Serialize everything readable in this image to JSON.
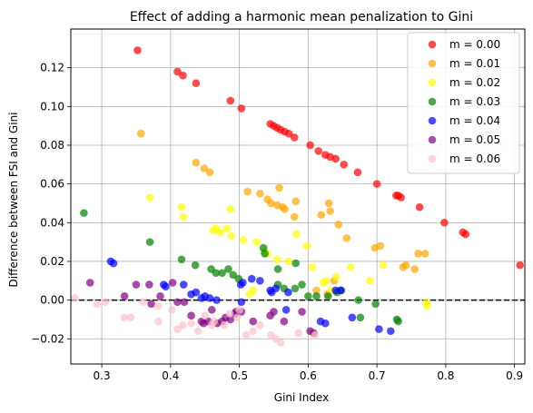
{
  "chart_data": {
    "type": "scatter",
    "title": "Effect of adding a harmonic mean penalization to Gini",
    "xlabel": "Gini Index",
    "ylabel": "Difference between FSI and Gini",
    "xlim": [
      0.255,
      0.915
    ],
    "ylim": [
      -0.033,
      0.14
    ],
    "xticks": [
      0.3,
      0.4,
      0.5,
      0.6,
      0.7,
      0.8,
      0.9
    ],
    "yticks": [
      -0.02,
      0.0,
      0.02,
      0.04,
      0.06,
      0.08,
      0.1,
      0.12
    ],
    "xtick_labels": [
      "0.3",
      "0.4",
      "0.5",
      "0.6",
      "0.7",
      "0.8",
      "0.9"
    ],
    "ytick_labels": [
      "−0.02",
      "0.00",
      "0.02",
      "0.04",
      "0.06",
      "0.08",
      "0.10",
      "0.12"
    ],
    "grid": true,
    "legend_position": "top-right",
    "reference_line": {
      "y": 0,
      "style": "dashed",
      "color": "#000000"
    },
    "series": [
      {
        "name": "m = 0.00",
        "color": "#ff0000",
        "points": [
          [
            0.352,
            0.129
          ],
          [
            0.41,
            0.118
          ],
          [
            0.418,
            0.116
          ],
          [
            0.437,
            0.112
          ],
          [
            0.487,
            0.103
          ],
          [
            0.503,
            0.099
          ],
          [
            0.545,
            0.091
          ],
          [
            0.55,
            0.09
          ],
          [
            0.555,
            0.089
          ],
          [
            0.56,
            0.088
          ],
          [
            0.566,
            0.087
          ],
          [
            0.572,
            0.086
          ],
          [
            0.58,
            0.084
          ],
          [
            0.603,
            0.08
          ],
          [
            0.615,
            0.077
          ],
          [
            0.625,
            0.075
          ],
          [
            0.632,
            0.074
          ],
          [
            0.64,
            0.073
          ],
          [
            0.652,
            0.07
          ],
          [
            0.672,
            0.066
          ],
          [
            0.7,
            0.06
          ],
          [
            0.728,
            0.054
          ],
          [
            0.731,
            0.054
          ],
          [
            0.735,
            0.053
          ],
          [
            0.762,
            0.048
          ],
          [
            0.798,
            0.04
          ],
          [
            0.825,
            0.035
          ],
          [
            0.829,
            0.034
          ],
          [
            0.908,
            0.018
          ]
        ]
      },
      {
        "name": "m = 0.01",
        "color": "#ffa500",
        "points": [
          [
            0.357,
            0.086
          ],
          [
            0.437,
            0.071
          ],
          [
            0.449,
            0.068
          ],
          [
            0.457,
            0.066
          ],
          [
            0.512,
            0.056
          ],
          [
            0.53,
            0.055
          ],
          [
            0.541,
            0.052
          ],
          [
            0.558,
            0.058
          ],
          [
            0.546,
            0.05
          ],
          [
            0.555,
            0.049
          ],
          [
            0.563,
            0.048
          ],
          [
            0.566,
            0.047
          ],
          [
            0.58,
            0.043
          ],
          [
            0.582,
            0.051
          ],
          [
            0.619,
            0.044
          ],
          [
            0.63,
            0.05
          ],
          [
            0.632,
            0.046
          ],
          [
            0.644,
            0.039
          ],
          [
            0.656,
            0.032
          ],
          [
            0.697,
            0.027
          ],
          [
            0.705,
            0.028
          ],
          [
            0.77,
            0.024
          ],
          [
            0.742,
            0.018
          ],
          [
            0.76,
            0.024
          ],
          [
            0.755,
            0.016
          ],
          [
            0.738,
            0.017
          ],
          [
            0.638,
            0.01
          ],
          [
            0.612,
            0.005
          ],
          [
            0.628,
            0.003
          ]
        ]
      },
      {
        "name": "m = 0.02",
        "color": "#ffff00",
        "points": [
          [
            0.37,
            0.053
          ],
          [
            0.416,
            0.048
          ],
          [
            0.419,
            0.043
          ],
          [
            0.487,
            0.047
          ],
          [
            0.462,
            0.036
          ],
          [
            0.466,
            0.037
          ],
          [
            0.472,
            0.035
          ],
          [
            0.482,
            0.037
          ],
          [
            0.488,
            0.033
          ],
          [
            0.506,
            0.031
          ],
          [
            0.525,
            0.03
          ],
          [
            0.536,
            0.025
          ],
          [
            0.541,
            0.024
          ],
          [
            0.555,
            0.021
          ],
          [
            0.571,
            0.02
          ],
          [
            0.583,
            0.034
          ],
          [
            0.598,
            0.028
          ],
          [
            0.606,
            0.017
          ],
          [
            0.622,
            0.009
          ],
          [
            0.626,
            0.01
          ],
          [
            0.641,
            0.012
          ],
          [
            0.633,
            0.005
          ],
          [
            0.662,
            0.017
          ],
          [
            0.69,
            0.01
          ],
          [
            0.709,
            0.018
          ],
          [
            0.772,
            -0.001
          ],
          [
            0.773,
            -0.003
          ],
          [
            0.52,
            0.005
          ],
          [
            0.515,
            0.003
          ]
        ]
      },
      {
        "name": "m = 0.03",
        "color": "#008000",
        "points": [
          [
            0.274,
            0.045
          ],
          [
            0.37,
            0.03
          ],
          [
            0.416,
            0.021
          ],
          [
            0.436,
            0.018
          ],
          [
            0.459,
            0.016
          ],
          [
            0.466,
            0.014
          ],
          [
            0.475,
            0.014
          ],
          [
            0.484,
            0.016
          ],
          [
            0.491,
            0.013
          ],
          [
            0.499,
            0.011
          ],
          [
            0.535,
            0.027
          ],
          [
            0.537,
            0.024
          ],
          [
            0.556,
            0.016
          ],
          [
            0.582,
            0.019
          ],
          [
            0.581,
            0.006
          ],
          [
            0.591,
            0.008
          ],
          [
            0.556,
            0.008
          ],
          [
            0.565,
            0.006
          ],
          [
            0.612,
            0.002
          ],
          [
            0.629,
            0.002
          ],
          [
            0.647,
            0.005
          ],
          [
            0.642,
            0.004
          ],
          [
            0.673,
            0.0
          ],
          [
            0.676,
            -0.009
          ],
          [
            0.698,
            -0.002
          ],
          [
            0.729,
            -0.01
          ],
          [
            0.731,
            -0.011
          ],
          [
            0.6,
            0.002
          ]
        ]
      },
      {
        "name": "m = 0.04",
        "color": "#0000ff",
        "points": [
          [
            0.313,
            0.02
          ],
          [
            0.317,
            0.019
          ],
          [
            0.39,
            0.008
          ],
          [
            0.393,
            0.007
          ],
          [
            0.419,
            0.008
          ],
          [
            0.43,
            0.003
          ],
          [
            0.437,
            0.004
          ],
          [
            0.445,
            0.001
          ],
          [
            0.45,
            0.002
          ],
          [
            0.457,
            0.001
          ],
          [
            0.467,
            0.0
          ],
          [
            0.502,
            0.008
          ],
          [
            0.505,
            0.009
          ],
          [
            0.518,
            0.011
          ],
          [
            0.53,
            0.01
          ],
          [
            0.545,
            0.005
          ],
          [
            0.553,
            0.006
          ],
          [
            0.571,
            0.004
          ],
          [
            0.547,
            0.004
          ],
          [
            0.64,
            0.005
          ],
          [
            0.648,
            0.005
          ],
          [
            0.625,
            -0.012
          ],
          [
            0.618,
            -0.011
          ],
          [
            0.664,
            -0.009
          ],
          [
            0.703,
            -0.015
          ],
          [
            0.72,
            -0.016
          ],
          [
            0.503,
            -0.001
          ],
          [
            0.568,
            -0.005
          ]
        ]
      },
      {
        "name": "m = 0.05",
        "color": "#800080",
        "points": [
          [
            0.283,
            0.009
          ],
          [
            0.333,
            0.002
          ],
          [
            0.35,
            0.008
          ],
          [
            0.369,
            0.008
          ],
          [
            0.385,
            0.002
          ],
          [
            0.403,
            0.009
          ],
          [
            0.41,
            -0.001
          ],
          [
            0.42,
            -0.001
          ],
          [
            0.43,
            -0.008
          ],
          [
            0.445,
            -0.011
          ],
          [
            0.448,
            -0.012
          ],
          [
            0.46,
            -0.005
          ],
          [
            0.468,
            -0.012
          ],
          [
            0.475,
            -0.011
          ],
          [
            0.48,
            -0.009
          ],
          [
            0.487,
            -0.01
          ],
          [
            0.495,
            -0.006
          ],
          [
            0.503,
            -0.006
          ],
          [
            0.52,
            -0.011
          ],
          [
            0.545,
            -0.008
          ],
          [
            0.55,
            -0.006
          ],
          [
            0.565,
            -0.011
          ],
          [
            0.591,
            -0.006
          ],
          [
            0.603,
            -0.016
          ],
          [
            0.608,
            -0.017
          ],
          [
            0.372,
            -0.002
          ],
          [
            0.455,
            -0.011
          ],
          [
            0.494,
            -0.007
          ]
        ]
      },
      {
        "name": "m = 0.06",
        "color": "#ffc0cb",
        "points": [
          [
            0.261,
            0.001
          ],
          [
            0.293,
            -0.002
          ],
          [
            0.305,
            -0.001
          ],
          [
            0.333,
            -0.009
          ],
          [
            0.342,
            -0.009
          ],
          [
            0.36,
            -0.001
          ],
          [
            0.382,
            -0.011
          ],
          [
            0.402,
            -0.005
          ],
          [
            0.41,
            -0.015
          ],
          [
            0.418,
            -0.013
          ],
          [
            0.43,
            -0.012
          ],
          [
            0.44,
            -0.016
          ],
          [
            0.45,
            -0.008
          ],
          [
            0.46,
            -0.013
          ],
          [
            0.478,
            -0.013
          ],
          [
            0.486,
            -0.007
          ],
          [
            0.497,
            -0.009
          ],
          [
            0.51,
            -0.018
          ],
          [
            0.52,
            -0.016
          ],
          [
            0.53,
            -0.013
          ],
          [
            0.546,
            -0.018
          ],
          [
            0.553,
            -0.02
          ],
          [
            0.56,
            -0.022
          ],
          [
            0.586,
            -0.017
          ],
          [
            0.61,
            -0.018
          ],
          [
            0.5,
            -0.005
          ],
          [
            0.382,
            -0.003
          ],
          [
            0.463,
            -0.011
          ]
        ]
      }
    ]
  }
}
